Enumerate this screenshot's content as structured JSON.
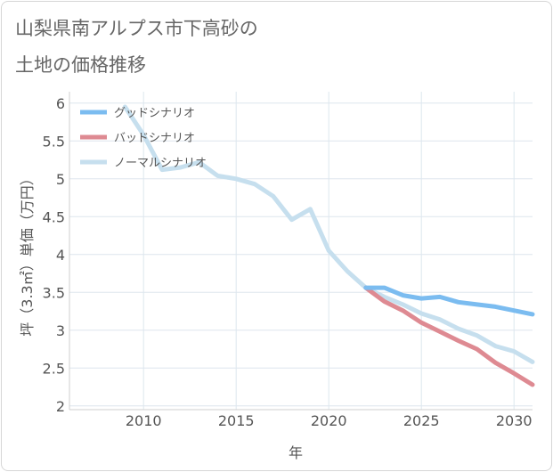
{
  "title_line1": "山梨県南アルプス市下高砂の",
  "title_line2": "土地の価格推移",
  "chart_data": {
    "type": "line",
    "title": "山梨県南アルプス市下高砂の土地の価格推移",
    "xlabel": "年",
    "ylabel": "坪（3.3㎡）単価（万円）",
    "xlim": [
      2006,
      2031
    ],
    "ylim": [
      1.95,
      6.15
    ],
    "xticks": [
      2010,
      2015,
      2020,
      2025,
      2030
    ],
    "yticks": [
      2,
      2.5,
      3,
      3.5,
      4,
      4.5,
      5,
      5.5,
      6
    ],
    "grid": true,
    "legend_position": "top-left",
    "series": [
      {
        "name": "グッドシナリオ",
        "color": "#7bbcf0",
        "x": [
          2022,
          2023,
          2024,
          2025,
          2026,
          2027,
          2028,
          2029,
          2030,
          2031
        ],
        "values": [
          3.56,
          3.56,
          3.46,
          3.42,
          3.44,
          3.37,
          3.34,
          3.31,
          3.26,
          3.21
        ]
      },
      {
        "name": "バッドシナリオ",
        "color": "#de8a92",
        "x": [
          2022,
          2023,
          2024,
          2025,
          2026,
          2027,
          2028,
          2029,
          2030,
          2031
        ],
        "values": [
          3.56,
          3.38,
          3.26,
          3.1,
          2.98,
          2.86,
          2.75,
          2.57,
          2.43,
          2.28
        ]
      },
      {
        "name": "ノーマルシナリオ",
        "color": "#c6dfee",
        "x": [
          2009,
          2010,
          2011,
          2012,
          2013,
          2014,
          2015,
          2016,
          2017,
          2018,
          2019,
          2020,
          2021,
          2022,
          2023,
          2024,
          2025,
          2026,
          2027,
          2028,
          2029,
          2030,
          2031
        ],
        "values": [
          5.95,
          5.58,
          5.12,
          5.15,
          5.22,
          5.04,
          5.0,
          4.93,
          4.77,
          4.46,
          4.6,
          4.05,
          3.78,
          3.56,
          3.44,
          3.34,
          3.22,
          3.14,
          3.02,
          2.93,
          2.79,
          2.72,
          2.58
        ]
      }
    ]
  }
}
